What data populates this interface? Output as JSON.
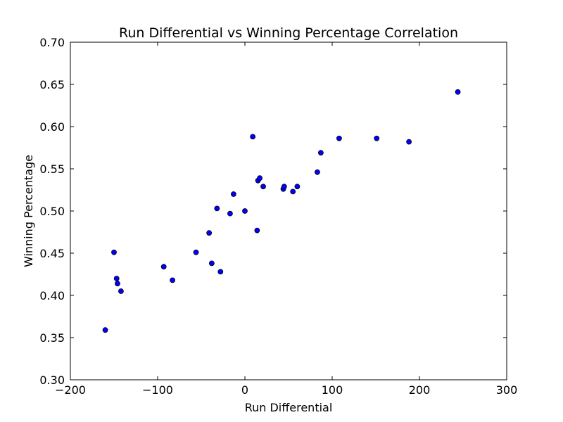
{
  "chart_data": {
    "type": "scatter",
    "title": "Run Differential vs Winning Percentage Correlation",
    "xlabel": "Run Differential",
    "ylabel": "Winning Percentage",
    "xlim": [
      -200,
      300
    ],
    "ylim": [
      0.3,
      0.7
    ],
    "xticks": [
      -200,
      -100,
      0,
      100,
      200,
      300
    ],
    "xtick_labels": [
      "−200",
      "−100",
      "0",
      "100",
      "200",
      "300"
    ],
    "yticks": [
      0.3,
      0.35,
      0.4,
      0.45,
      0.5,
      0.55,
      0.6,
      0.65,
      0.7
    ],
    "ytick_labels": [
      "0.30",
      "0.35",
      "0.40",
      "0.45",
      "0.50",
      "0.55",
      "0.60",
      "0.65",
      "0.70"
    ],
    "grid": false,
    "legend": "none",
    "marker_color": "#0000ff",
    "marker_edge_color": "#000000",
    "points": [
      {
        "x": -160,
        "y": 0.359
      },
      {
        "x": -150,
        "y": 0.451
      },
      {
        "x": -147,
        "y": 0.42
      },
      {
        "x": -146,
        "y": 0.414
      },
      {
        "x": -142,
        "y": 0.405
      },
      {
        "x": -93,
        "y": 0.434
      },
      {
        "x": -83,
        "y": 0.418
      },
      {
        "x": -56,
        "y": 0.451
      },
      {
        "x": -41,
        "y": 0.474
      },
      {
        "x": -38,
        "y": 0.438
      },
      {
        "x": -32,
        "y": 0.503
      },
      {
        "x": -28,
        "y": 0.428
      },
      {
        "x": -17,
        "y": 0.497
      },
      {
        "x": -13,
        "y": 0.52
      },
      {
        "x": 0,
        "y": 0.5
      },
      {
        "x": 9,
        "y": 0.588
      },
      {
        "x": 14,
        "y": 0.477
      },
      {
        "x": 15,
        "y": 0.536
      },
      {
        "x": 17,
        "y": 0.539
      },
      {
        "x": 21,
        "y": 0.529
      },
      {
        "x": 44,
        "y": 0.526
      },
      {
        "x": 45,
        "y": 0.529
      },
      {
        "x": 55,
        "y": 0.523
      },
      {
        "x": 60,
        "y": 0.529
      },
      {
        "x": 83,
        "y": 0.546
      },
      {
        "x": 87,
        "y": 0.569
      },
      {
        "x": 108,
        "y": 0.586
      },
      {
        "x": 151,
        "y": 0.586
      },
      {
        "x": 188,
        "y": 0.582
      },
      {
        "x": 244,
        "y": 0.641
      }
    ]
  }
}
